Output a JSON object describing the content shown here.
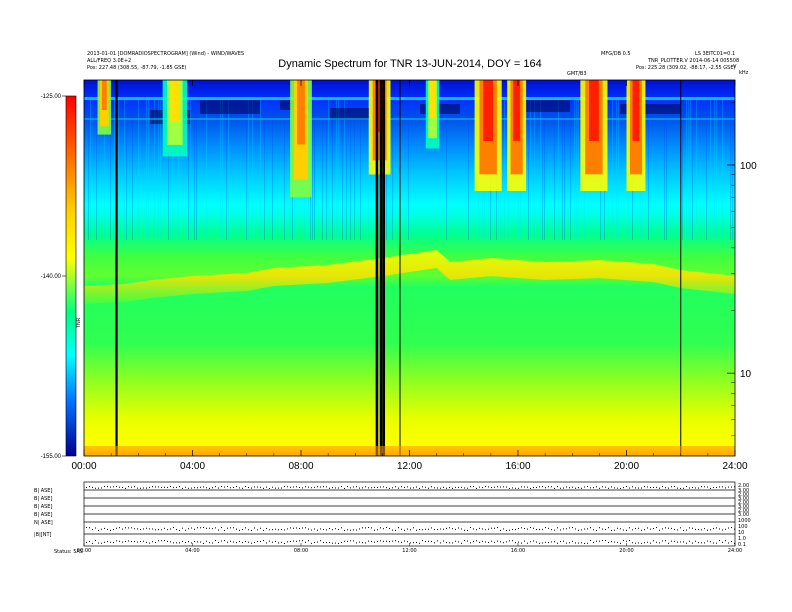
{
  "header": {
    "title": "Dynamic Spectrum for TNR 13-JUN-2014, DOY = 164",
    "left_info_1": "2013-01-01 [DOMRADIOSPECTROGRAM] (Wind) - WIND/WAVES",
    "left_info_2": "ALL/FREQ 3.0E+2",
    "left_pos": "Pos:    227.48 (308.55, -87.79, -1.85 GSE)",
    "right_info_top": "MFG/DB 0.5",
    "right_info_top2": "LS 3EITC01=0.1",
    "right_info_2": "TNR_PLOTTER.V 2014-06-14 005508",
    "right_pos": "Pos:    225.28 (309.02, -88.17, -2.55 GSE)",
    "right_corner": "V",
    "mid_small": "GMT/B3",
    "khz_label": "kHz"
  },
  "chart_data": {
    "type": "heatmap",
    "title": "Dynamic Spectrum for TNR 13-JUN-2014, DOY = 164",
    "x_ticks": [
      "00:00",
      "04:00",
      "08:00",
      "12:00",
      "16:00",
      "20:00",
      "24:00"
    ],
    "x_range_hours": [
      0,
      24
    ],
    "y_right_ticks": [
      "100",
      "10"
    ],
    "y_right_scale": "log",
    "y_right_range_khz": [
      4,
      256
    ],
    "colorbar_ticks": [
      "-125.00",
      "-140.00",
      "-155.00"
    ],
    "colorbar_range": [
      -155,
      -125
    ],
    "colorbar_label": "TNR",
    "colors": [
      "#00007a",
      "#0000ff",
      "#0080ff",
      "#00ffff",
      "#00ff80",
      "#ffff00",
      "#ff8000",
      "#ff0000",
      "#a00000"
    ],
    "data_gap_lines_hours": [
      1.2,
      10.8,
      10.95,
      11.05,
      11.65,
      22.0
    ],
    "radio_bursts": [
      {
        "t_start": 0.5,
        "t_end": 1.0,
        "f_top_khz": 256,
        "f_low_khz": 140,
        "peak": "orange"
      },
      {
        "t_start": 2.9,
        "t_end": 3.8,
        "f_top_khz": 256,
        "f_low_khz": 110,
        "peak": "yellow"
      },
      {
        "t_start": 7.6,
        "t_end": 8.4,
        "f_top_khz": 256,
        "f_low_khz": 70,
        "peak": "orange"
      },
      {
        "t_start": 10.5,
        "t_end": 11.3,
        "f_top_khz": 256,
        "f_low_khz": 90,
        "peak": "red"
      },
      {
        "t_start": 12.6,
        "t_end": 13.1,
        "f_top_khz": 256,
        "f_low_khz": 120,
        "peak": "yellow"
      },
      {
        "t_start": 14.4,
        "t_end": 15.4,
        "f_top_khz": 256,
        "f_low_khz": 75,
        "peak": "red"
      },
      {
        "t_start": 15.6,
        "t_end": 16.3,
        "f_top_khz": 256,
        "f_low_khz": 75,
        "peak": "red"
      },
      {
        "t_start": 18.3,
        "t_end": 19.3,
        "f_top_khz": 256,
        "f_low_khz": 75,
        "peak": "red"
      },
      {
        "t_start": 20.0,
        "t_end": 20.7,
        "f_top_khz": 256,
        "f_low_khz": 75,
        "peak": "red"
      }
    ]
  },
  "bottom_panel": {
    "row_labels": [
      "B| ASE]",
      "B| ASE]",
      "B| ASE]",
      "B| ASE]",
      "N| ASE]",
      "|B|[NT]"
    ],
    "right_ticks": [
      "2.00",
      "3.00",
      "2.00",
      "3.00",
      "2.00",
      "3.00",
      "2.00",
      "3.00",
      "1000",
      "100",
      "10",
      "1.0",
      "0.1"
    ],
    "x_ticks": [
      "00:00",
      "04:00",
      "08:00",
      "12:00",
      "16:00",
      "20:00",
      "24:00"
    ],
    "footer_left": "Status: 5AS"
  }
}
